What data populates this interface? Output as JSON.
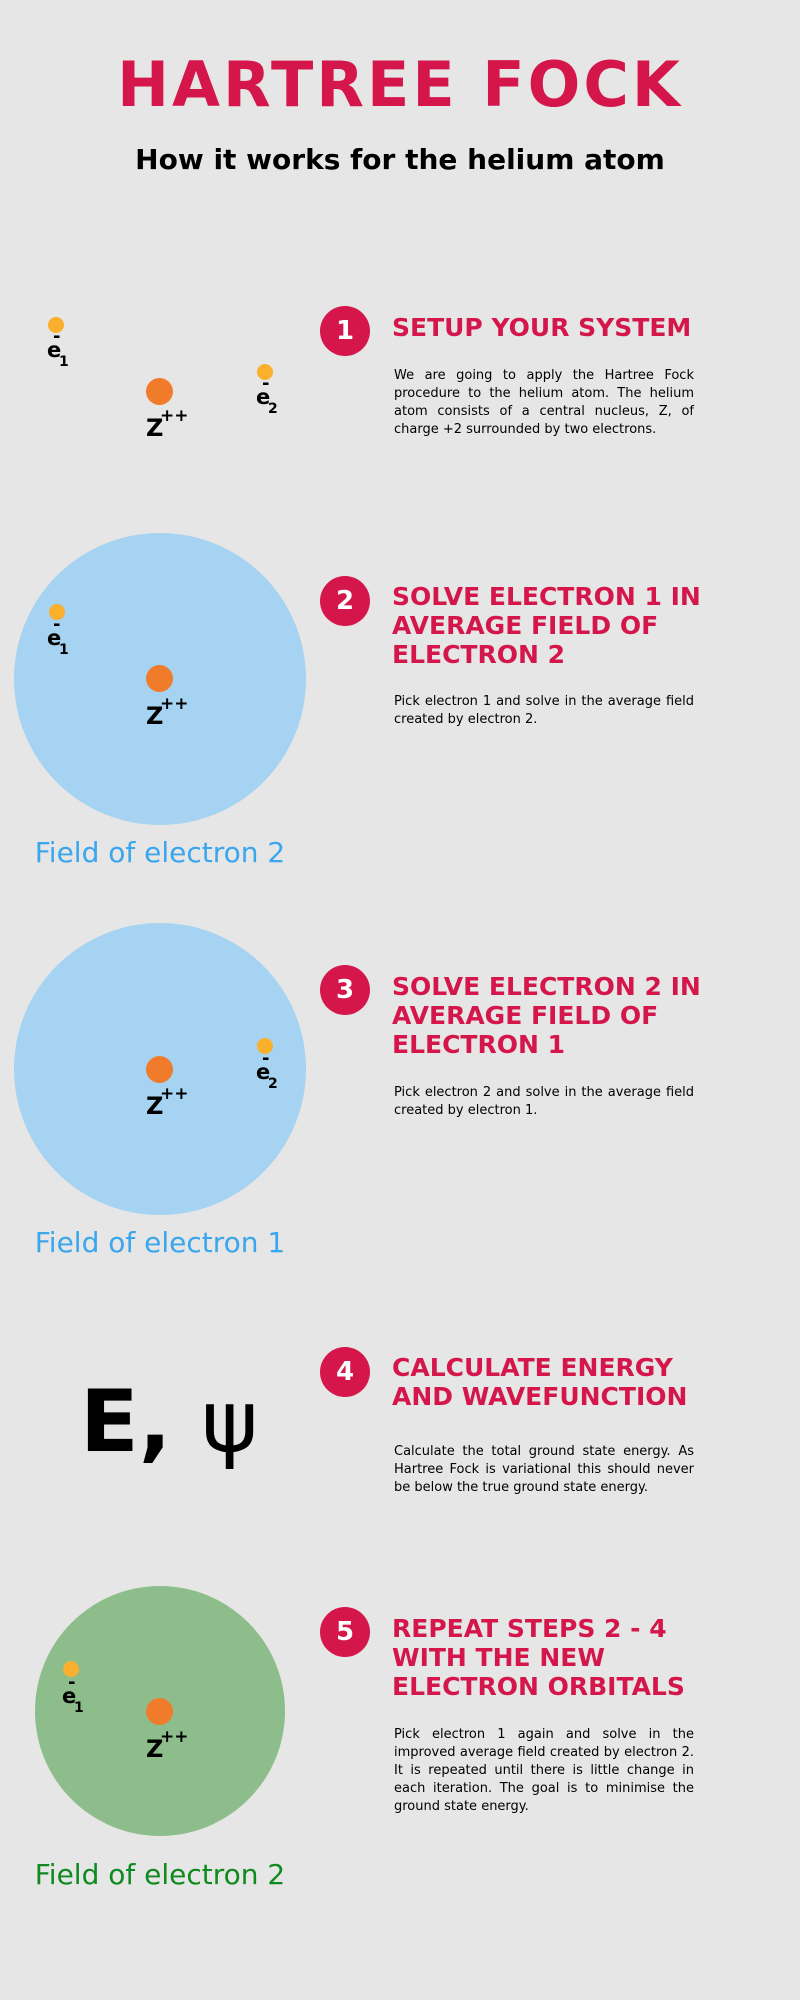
{
  "header": {
    "title": "HARTREE FOCK",
    "subtitle": "How it works for the helium atom"
  },
  "labels": {
    "electron_symbol": "e",
    "electron_charge": "-",
    "electron1_sub": "1",
    "electron2_sub": "2",
    "nucleus_symbol": "Z",
    "nucleus_charge": "++"
  },
  "steps": [
    {
      "number": "1",
      "heading": "SETUP YOUR SYSTEM",
      "body": "We are going to apply the Hartree Fock procedure to the helium atom. The helium atom consists of a central nucleus, Z, of charge +2 surrounded by two electrons."
    },
    {
      "number": "2",
      "heading": "SOLVE ELECTRON 1 IN AVERAGE FIELD OF ELECTRON 2",
      "body": "Pick electron 1 and solve in the average field created by electron 2.",
      "field_label": "Field of electron 2"
    },
    {
      "number": "3",
      "heading": "SOLVE ELECTRON 2 IN AVERAGE FIELD OF ELECTRON 1",
      "body": "Pick electron 2 and solve in the average field created by electron 1.",
      "field_label": "Field of electron 1"
    },
    {
      "number": "4",
      "heading": "CALCULATE ENERGY AND WAVEFUNCTION",
      "body": "Calculate the total ground state energy. As Hartree Fock is variational this should never be below the true ground state energy.",
      "symbol_e": "E,",
      "symbol_psi": "ψ"
    },
    {
      "number": "5",
      "heading": "REPEAT STEPS 2 - 4 WITH THE NEW ELECTRON ORBITALS",
      "body": "Pick electron 1 again and solve in the improved average field created by electron 2. It is repeated until there is little change in each iteration. The goal is to minimise the ground state energy.",
      "field_label": "Field of electron 2"
    }
  ],
  "colors": {
    "accent": "#d4164b",
    "background": "#e6e6e6",
    "field_blue": "#a5d3f1",
    "field_blue_text": "#3aa6ee",
    "field_green": "#8dbd8a",
    "field_green_text": "#0f8a1e",
    "electron": "#fbb02d",
    "nucleus": "#f07c2b"
  }
}
